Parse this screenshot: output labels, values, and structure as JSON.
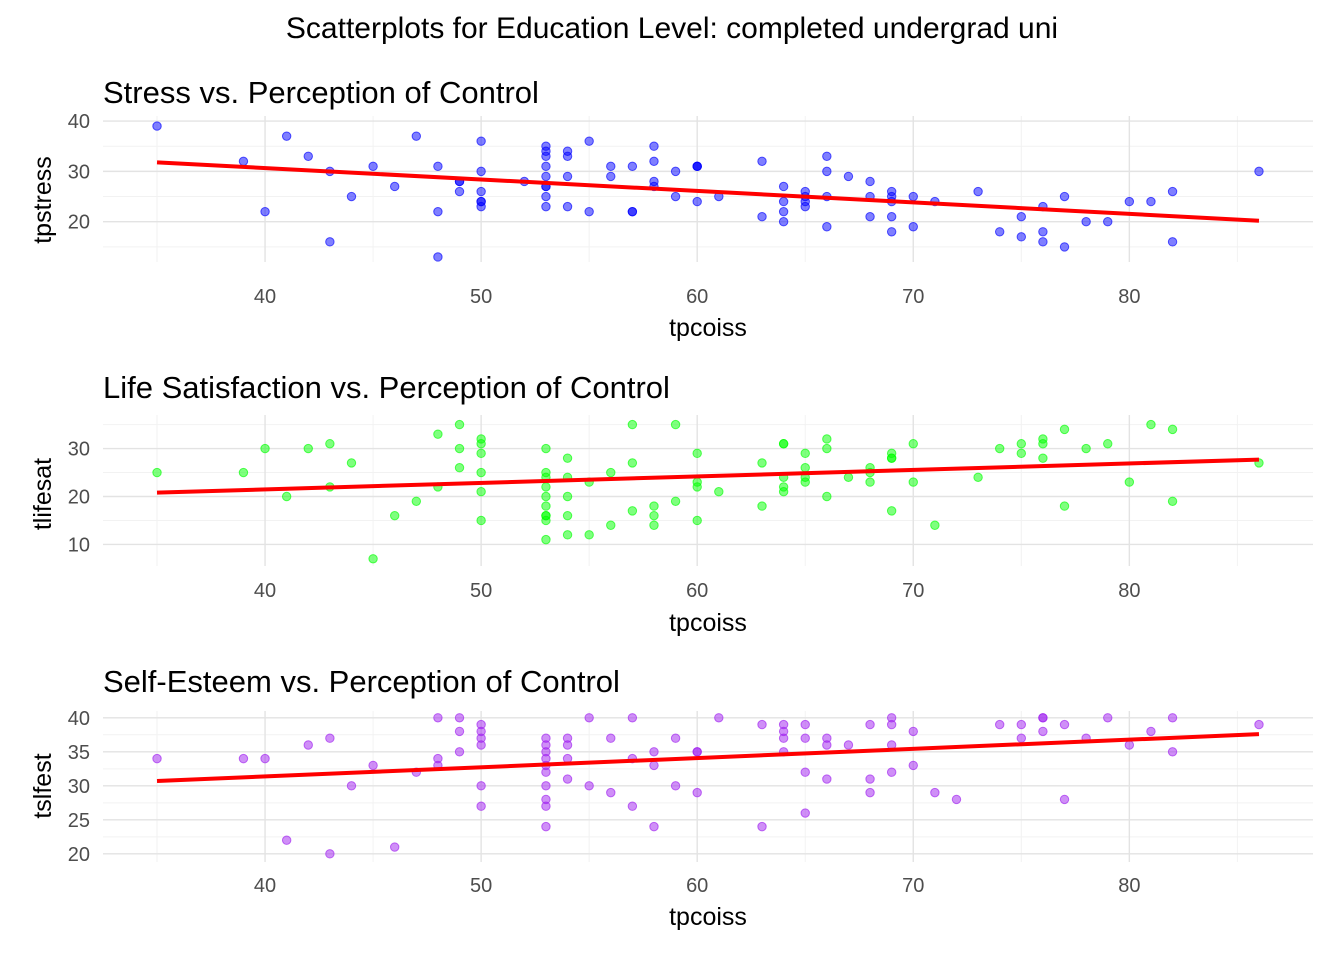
{
  "figure": {
    "suptitle": "Scatterplots for Education Level: completed undergrad uni"
  },
  "chart_data": [
    {
      "type": "scatter",
      "title": "Stress vs. Perception of Control",
      "xlabel": "tpcoiss",
      "ylabel": "tpstress",
      "xlim": [
        32.5,
        88.5
      ],
      "ylim": [
        12,
        41
      ],
      "xticks": [
        40,
        50,
        60,
        70,
        80
      ],
      "yticks": [
        20,
        30,
        40
      ],
      "grid": true,
      "point_color": "#0000ff",
      "line_color": "#ff0000",
      "trend_line": {
        "x": [
          35,
          86
        ],
        "y": [
          31.8,
          20.2
        ]
      },
      "x": [
        35,
        39,
        40,
        41,
        42,
        43,
        43,
        44,
        45,
        46,
        47,
        48,
        48,
        48,
        49,
        49,
        49,
        50,
        50,
        50,
        50,
        50,
        50,
        52,
        53,
        53,
        53,
        53,
        53,
        53,
        53,
        53,
        53,
        54,
        54,
        54,
        54,
        55,
        55,
        56,
        56,
        57,
        57,
        57,
        58,
        58,
        58,
        58,
        59,
        59,
        60,
        60,
        60,
        60,
        61,
        63,
        63,
        64,
        64,
        64,
        64,
        65,
        65,
        65,
        65,
        66,
        66,
        66,
        66,
        67,
        68,
        68,
        68,
        69,
        69,
        69,
        69,
        69,
        70,
        70,
        71,
        73,
        74,
        75,
        75,
        76,
        76,
        76,
        77,
        77,
        78,
        79,
        80,
        81,
        82,
        82,
        86
      ],
      "y": [
        39,
        32,
        22,
        37,
        33,
        30,
        16,
        25,
        31,
        27,
        37,
        31,
        22,
        13,
        28,
        28,
        26,
        36,
        30,
        26,
        24,
        23,
        24,
        28,
        35,
        34,
        33,
        31,
        29,
        27,
        27,
        25,
        23,
        34,
        33,
        29,
        23,
        36,
        22,
        31,
        29,
        31,
        22,
        22,
        35,
        32,
        28,
        27,
        30,
        25,
        31,
        31,
        31,
        24,
        25,
        32,
        21,
        27,
        24,
        22,
        20,
        26,
        25,
        24,
        23,
        33,
        30,
        25,
        19,
        29,
        28,
        25,
        21,
        26,
        25,
        24,
        21,
        18,
        25,
        19,
        24,
        26,
        18,
        21,
        17,
        23,
        18,
        16,
        25,
        15,
        20,
        20,
        24,
        24,
        26,
        16,
        30
      ]
    },
    {
      "type": "scatter",
      "title": "Life Satisfaction vs. Perception of Control",
      "xlabel": "tpcoiss",
      "ylabel": "tlifesat",
      "xlim": [
        32.5,
        88.5
      ],
      "ylim": [
        5.5,
        37
      ],
      "xticks": [
        40,
        50,
        60,
        70,
        80
      ],
      "yticks": [
        10,
        20,
        30
      ],
      "grid": true,
      "point_color": "#00ff00",
      "line_color": "#ff0000",
      "trend_line": {
        "x": [
          35,
          86
        ],
        "y": [
          20.8,
          27.7
        ]
      },
      "x": [
        35,
        39,
        40,
        41,
        42,
        43,
        43,
        44,
        45,
        46,
        47,
        48,
        48,
        49,
        49,
        49,
        50,
        50,
        50,
        50,
        50,
        50,
        53,
        53,
        53,
        53,
        53,
        53,
        53,
        53,
        53,
        53,
        54,
        54,
        54,
        54,
        54,
        55,
        55,
        56,
        56,
        57,
        57,
        57,
        58,
        58,
        58,
        59,
        59,
        60,
        60,
        60,
        60,
        61,
        63,
        63,
        64,
        64,
        64,
        64,
        64,
        65,
        65,
        65,
        65,
        66,
        66,
        66,
        67,
        68,
        68,
        68,
        69,
        69,
        69,
        69,
        70,
        70,
        71,
        73,
        74,
        75,
        75,
        76,
        76,
        76,
        77,
        77,
        78,
        79,
        80,
        81,
        82,
        82,
        86
      ],
      "y": [
        25,
        25,
        30,
        20,
        30,
        31,
        22,
        27,
        7,
        16,
        19,
        33,
        22,
        35,
        30,
        26,
        32,
        31,
        29,
        25,
        21,
        15,
        30,
        25,
        24,
        22,
        20,
        18,
        16,
        16,
        15,
        11,
        28,
        24,
        20,
        16,
        12,
        12,
        23,
        25,
        14,
        35,
        27,
        17,
        18,
        16,
        14,
        35,
        19,
        29,
        23,
        22,
        15,
        21,
        27,
        18,
        31,
        31,
        24,
        22,
        21,
        29,
        26,
        24,
        23,
        32,
        30,
        20,
        24,
        26,
        25,
        23,
        29,
        28,
        28,
        17,
        31,
        23,
        14,
        24,
        30,
        31,
        29,
        32,
        31,
        28,
        34,
        18,
        30,
        31,
        23,
        35,
        34,
        19,
        27
      ]
    },
    {
      "type": "scatter",
      "title": "Self-Esteem vs. Perception of Control",
      "xlabel": "tpcoiss",
      "ylabel": "tslfest",
      "xlim": [
        32.5,
        88.5
      ],
      "ylim": [
        18.8,
        41
      ],
      "xticks": [
        40,
        50,
        60,
        70,
        80
      ],
      "yticks": [
        20,
        25,
        30,
        35,
        40
      ],
      "grid": true,
      "point_color": "#a020f0",
      "line_color": "#ff0000",
      "trend_line": {
        "x": [
          35,
          86
        ],
        "y": [
          30.7,
          37.6
        ]
      },
      "x": [
        35,
        39,
        40,
        41,
        42,
        43,
        43,
        44,
        45,
        46,
        47,
        48,
        48,
        48,
        49,
        49,
        49,
        50,
        50,
        50,
        50,
        50,
        50,
        53,
        53,
        53,
        53,
        53,
        53,
        53,
        53,
        53,
        53,
        54,
        54,
        54,
        54,
        55,
        55,
        56,
        56,
        57,
        57,
        57,
        58,
        58,
        58,
        59,
        59,
        60,
        60,
        60,
        61,
        63,
        63,
        64,
        64,
        64,
        64,
        65,
        65,
        65,
        65,
        66,
        66,
        66,
        67,
        68,
        68,
        68,
        69,
        69,
        69,
        69,
        70,
        70,
        71,
        72,
        74,
        75,
        75,
        76,
        76,
        76,
        77,
        77,
        78,
        79,
        80,
        81,
        82,
        82,
        86
      ],
      "y": [
        34,
        34,
        34,
        22,
        36,
        37,
        20,
        30,
        33,
        21,
        32,
        40,
        34,
        33,
        40,
        38,
        35,
        39,
        38,
        37,
        36,
        30,
        27,
        37,
        36,
        35,
        34,
        33,
        32,
        30,
        28,
        27,
        24,
        37,
        36,
        34,
        31,
        30,
        40,
        29,
        37,
        34,
        27,
        40,
        35,
        33,
        24,
        37,
        30,
        35,
        35,
        29,
        40,
        39,
        24,
        39,
        38,
        37,
        35,
        39,
        37,
        32,
        26,
        37,
        36,
        31,
        36,
        39,
        31,
        29,
        40,
        39,
        36,
        32,
        38,
        33,
        29,
        28,
        39,
        39,
        37,
        40,
        40,
        38,
        39,
        28,
        37,
        40,
        36,
        38,
        40,
        35,
        39
      ]
    }
  ]
}
